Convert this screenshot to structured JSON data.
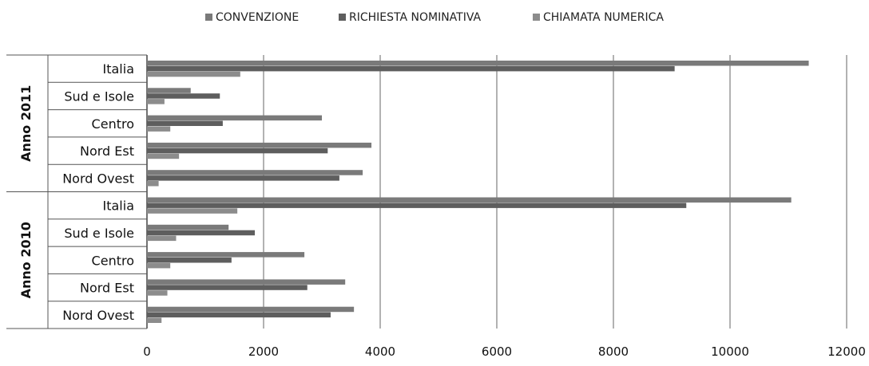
{
  "chart_data": {
    "type": "bar",
    "orientation": "horizontal",
    "legend": {
      "position": "top",
      "entries": [
        "CONVENZIONE",
        "RICHIESTA NOMINATIVA",
        "CHIAMATA NUMERICA"
      ]
    },
    "groups": [
      {
        "label": "Anno 2011",
        "categories": [
          "Italia",
          "Sud e Isole",
          "Centro",
          "Nord Est",
          "Nord Ovest"
        ]
      },
      {
        "label": "Anno 2010",
        "categories": [
          "Italia",
          "Sud e Isole",
          "Centro",
          "Nord Est",
          "Nord Ovest"
        ]
      }
    ],
    "series": [
      {
        "name": "CONVENZIONE",
        "color": "#7a7a7a",
        "values": [
          11350,
          750,
          3000,
          3850,
          3700,
          11050,
          1400,
          2700,
          3400,
          3550
        ]
      },
      {
        "name": "RICHIESTA NOMINATIVA",
        "color": "#5e5e5e",
        "values": [
          9050,
          1250,
          1300,
          3100,
          3300,
          9250,
          1850,
          1450,
          2750,
          3150
        ]
      },
      {
        "name": "CHIAMATA NUMERICA",
        "color": "#8c8c8c",
        "values": [
          1600,
          300,
          400,
          550,
          200,
          1550,
          500,
          400,
          350,
          250
        ]
      }
    ],
    "xlim": [
      0,
      12000
    ],
    "xticks": [
      "0",
      "2000",
      "4000",
      "6000",
      "8000",
      "10000",
      "12000"
    ],
    "grid": true,
    "xlabel": "",
    "ylabel": "",
    "title": ""
  }
}
